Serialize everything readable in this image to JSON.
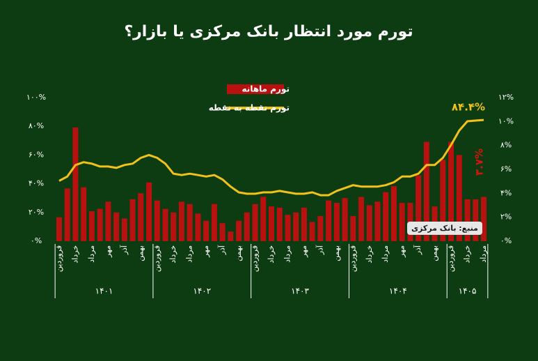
{
  "chart_data": {
    "type": "combo",
    "title": "تورم مورد انتظار بانک مرکزی یا بازار؟",
    "source": "منبع: بانک مرکزی",
    "categories": [
      "فروردین",
      null,
      "خرداد",
      null,
      "مرداد",
      null,
      "مهر",
      null,
      "آذر",
      null,
      "بهمن",
      null,
      "فروردین",
      null,
      "خرداد",
      null,
      "مرداد",
      null,
      "مهر",
      null,
      "آذر",
      null,
      "بهمن",
      null,
      "فروردین",
      null,
      "خرداد",
      null,
      "مرداد",
      null,
      "مهر",
      null,
      "آذر",
      null,
      "بهمن",
      null,
      "فروردین",
      null,
      "خرداد",
      null,
      "مرداد",
      null,
      "مهر",
      null,
      "آذر",
      null,
      "بهمن",
      null,
      "فروردین",
      null,
      "خرداد",
      null,
      "مرداد"
    ],
    "groups": [
      "۱۴۰۱",
      "۱۴۰۲",
      "۱۴۰۳",
      "۱۴۰۴",
      "۱۴۰۵"
    ],
    "series": [
      {
        "name": "تورم ماهانه",
        "type": "bar",
        "axis": "y2",
        "color": "#b8110f",
        "values": [
          2.0,
          4.4,
          9.5,
          4.5,
          2.5,
          2.7,
          3.3,
          2.4,
          1.9,
          3.5,
          4.0,
          4.9,
          3.4,
          2.7,
          2.4,
          3.3,
          3.1,
          2.3,
          1.7,
          3.1,
          1.5,
          0.8,
          1.7,
          2.4,
          3.1,
          3.7,
          2.9,
          2.8,
          2.2,
          2.4,
          2.8,
          1.6,
          2.1,
          3.4,
          3.2,
          3.6,
          2.1,
          3.7,
          3.0,
          3.3,
          4.1,
          4.6,
          3.2,
          3.2,
          5.5,
          8.3,
          2.9,
          6.8,
          8.3,
          7.2,
          3.5,
          3.5,
          3.7
        ],
        "value_labels": [
          null,
          null,
          null,
          null,
          null,
          null,
          null,
          null,
          null,
          null,
          null,
          null,
          null,
          null,
          null,
          null,
          null,
          null,
          null,
          null,
          null,
          null,
          null,
          null,
          null,
          null,
          null,
          null,
          null,
          null,
          null,
          null,
          null,
          null,
          null,
          null,
          null,
          null,
          null,
          null,
          null,
          null,
          null,
          null,
          null,
          null,
          null,
          null,
          null,
          null,
          null,
          null,
          "۳.۷%"
        ]
      },
      {
        "name": "تورم نقطه به نقطه",
        "type": "line",
        "color": "#f2c21b",
        "values": [
          42,
          45,
          53,
          55,
          54,
          52,
          52,
          51,
          53,
          54,
          58,
          60,
          58,
          54,
          47,
          46,
          47,
          46,
          45,
          46,
          43,
          38,
          34,
          33,
          33,
          34,
          34,
          35,
          34,
          33,
          33,
          34,
          32,
          32,
          35,
          37,
          39,
          38,
          38,
          38,
          39,
          41,
          45,
          45,
          47,
          53,
          53,
          58,
          67,
          77,
          83.5,
          84,
          84.4
        ],
        "value_labels": [
          null,
          null,
          null,
          null,
          null,
          null,
          null,
          null,
          null,
          null,
          null,
          null,
          null,
          null,
          null,
          null,
          null,
          null,
          null,
          null,
          null,
          null,
          null,
          null,
          null,
          null,
          null,
          null,
          null,
          null,
          null,
          null,
          null,
          null,
          null,
          null,
          null,
          null,
          null,
          null,
          null,
          null,
          null,
          null,
          null,
          null,
          null,
          null,
          null,
          null,
          null,
          null,
          "۸۴.۴%"
        ]
      }
    ],
    "ylim": [
      0,
      100
    ],
    "yticks": [
      {
        "value": 0,
        "label": "۰%"
      },
      {
        "value": 20,
        "label": "۲۰%"
      },
      {
        "value": 40,
        "label": "۴۰%"
      },
      {
        "value": 60,
        "label": "۶۰%"
      },
      {
        "value": 80,
        "label": "۸۰%"
      },
      {
        "value": 100,
        "label": "۱۰۰%"
      }
    ],
    "y2lim": [
      0,
      12
    ],
    "y2ticks": [
      {
        "value": 0,
        "label": "۰%"
      },
      {
        "value": 2,
        "label": "۲%"
      },
      {
        "value": 4,
        "label": "۴%"
      },
      {
        "value": 6,
        "label": "۶%"
      },
      {
        "value": 8,
        "label": "۸%"
      },
      {
        "value": 10,
        "label": "۱۰%"
      },
      {
        "value": 12,
        "label": "۱۲%"
      }
    ]
  }
}
